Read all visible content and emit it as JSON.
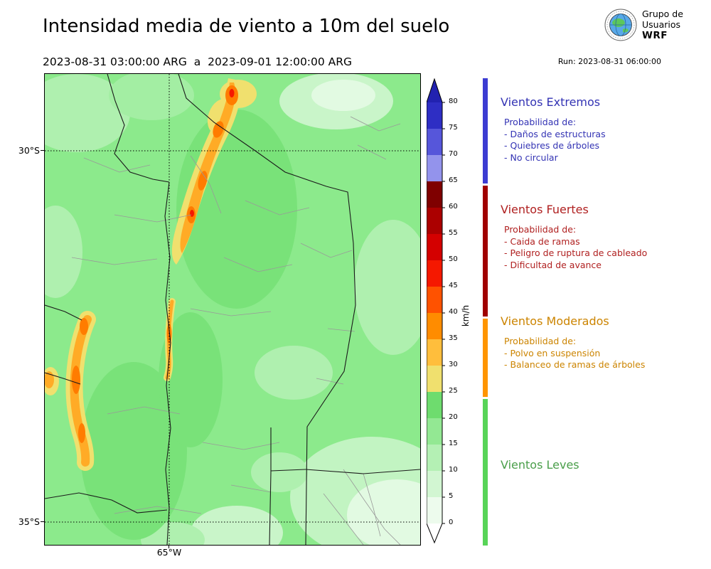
{
  "figure": {
    "title": "Intensidad media de viento a 10m del suelo",
    "date_range": "2023-08-31 03:00:00 ARG  a  2023-09-01 12:00:00 ARG",
    "run_label": "Run: 2023-08-31 06:00:00"
  },
  "logo": {
    "line1": "Grupo de",
    "line2": "Usuarios",
    "line3": "WRF"
  },
  "map": {
    "lat_labels": [
      "30°S",
      "35°S"
    ],
    "lon_labels": [
      "65°W"
    ],
    "base_color": "#8cea8c"
  },
  "colorbar": {
    "unit": "km/h",
    "ticks": [
      "80",
      "75",
      "70",
      "65",
      "60",
      "55",
      "50",
      "45",
      "40",
      "35",
      "30",
      "25",
      "20",
      "15",
      "10",
      "5",
      "0"
    ],
    "segment_colors_top_to_bottom": [
      "#2e2ec4",
      "#5656da",
      "#9393ec",
      "#7f0000",
      "#ab0000",
      "#d40000",
      "#f51800",
      "#ff5200",
      "#ff8c00",
      "#ffbe3c",
      "#f0e06e",
      "#6edc6e",
      "#93e893",
      "#b4f0b4",
      "#d2f6d2",
      "#edfbed"
    ],
    "arrow_top_color": "#2222b0",
    "arrow_bottom_color": "#ffffff"
  },
  "legend": {
    "categories": [
      {
        "title": "Vientos Extremos",
        "text_color": "#3333b4",
        "strip_color": "#3c3cd2",
        "intro": "Probabilidad de:",
        "items": [
          "- Daños de estructuras",
          "- Quiebres de árboles",
          "- No circular"
        ]
      },
      {
        "title": "Vientos Fuertes",
        "text_color": "#b02020",
        "strip_color": "#a00000",
        "intro": "Probabilidad de:",
        "items": [
          "- Caida de ramas",
          "- Peligro de ruptura de cableado",
          "- Dificultad de avance"
        ]
      },
      {
        "title": "Vientos Moderados",
        "text_color": "#cc8400",
        "strip_color": "#ff9500",
        "intro": "Probabilidad de:",
        "items": [
          "- Polvo en suspensión",
          "- Balanceo de ramas de árboles"
        ]
      },
      {
        "title": "Vientos Leves",
        "text_color": "#4a9e4a",
        "strip_color": "#58d458",
        "intro": "",
        "items": []
      }
    ]
  }
}
